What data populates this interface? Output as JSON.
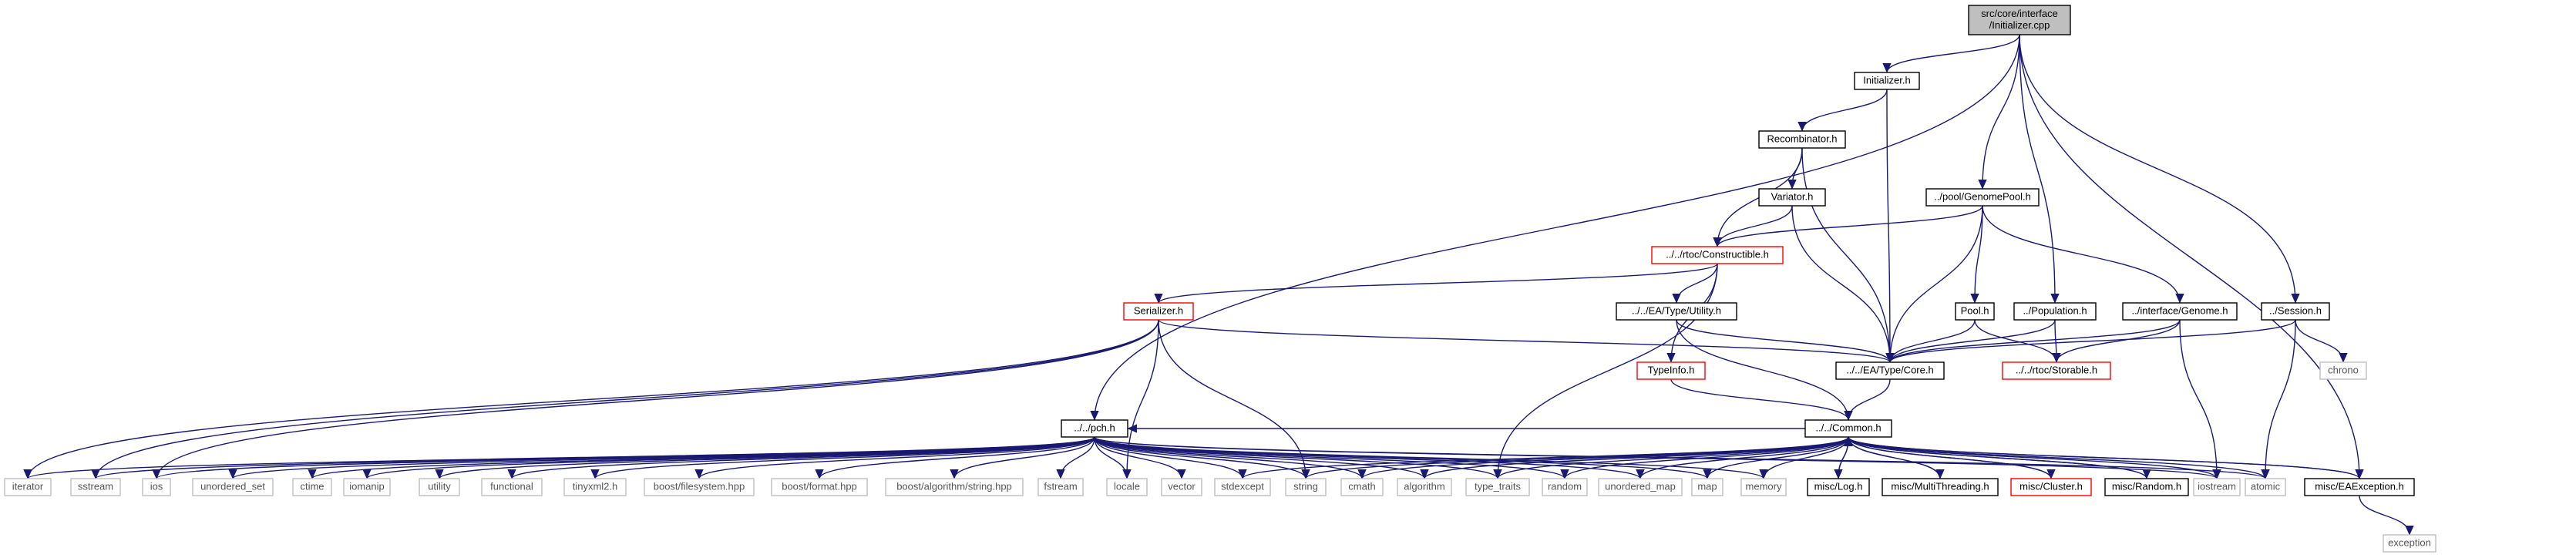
{
  "diagram": {
    "type": "include-dependency-graph",
    "colors": {
      "edge": "#191970",
      "node_border": "#000000",
      "root_fill": "#bfbfbf",
      "truncated_border": "#ff0000",
      "external_border": "#bfbfbf",
      "external_text": "#555555"
    },
    "nodes": [
      {
        "id": "root",
        "label": "src/core/interface\n/Initializer.cpp",
        "kind": "root"
      },
      {
        "id": "initializer_h",
        "label": "Initializer.h",
        "kind": "normal"
      },
      {
        "id": "recombinator_h",
        "label": "Recombinator.h",
        "kind": "normal"
      },
      {
        "id": "variator_h",
        "label": "Variator.h",
        "kind": "normal"
      },
      {
        "id": "genomepool_h",
        "label": "../pool/GenomePool.h",
        "kind": "normal"
      },
      {
        "id": "constructible_h",
        "label": "../../rtoc/Constructible.h",
        "kind": "truncated"
      },
      {
        "id": "serializer_h",
        "label": "Serializer.h",
        "kind": "truncated"
      },
      {
        "id": "utility_h",
        "label": "../../EA/Type/Utility.h",
        "kind": "normal"
      },
      {
        "id": "pool_h",
        "label": "Pool.h",
        "kind": "normal"
      },
      {
        "id": "population_h",
        "label": "../Population.h",
        "kind": "normal"
      },
      {
        "id": "genome_h",
        "label": "../interface/Genome.h",
        "kind": "normal"
      },
      {
        "id": "session_h",
        "label": "../Session.h",
        "kind": "normal"
      },
      {
        "id": "chrono",
        "label": "chrono",
        "kind": "external"
      },
      {
        "id": "typeinfo_h",
        "label": "TypeInfo.h",
        "kind": "truncated"
      },
      {
        "id": "core_h",
        "label": "../../EA/Type/Core.h",
        "kind": "normal"
      },
      {
        "id": "storable_h",
        "label": "../../rtoc/Storable.h",
        "kind": "truncated"
      },
      {
        "id": "pch_h",
        "label": "../../pch.h",
        "kind": "normal"
      },
      {
        "id": "common_h",
        "label": "../../Common.h",
        "kind": "normal"
      },
      {
        "id": "iterator",
        "label": "iterator",
        "kind": "external"
      },
      {
        "id": "sstream",
        "label": "sstream",
        "kind": "external"
      },
      {
        "id": "ios",
        "label": "ios",
        "kind": "external"
      },
      {
        "id": "unordered_set",
        "label": "unordered_set",
        "kind": "external"
      },
      {
        "id": "ctime",
        "label": "ctime",
        "kind": "external"
      },
      {
        "id": "iomanip",
        "label": "iomanip",
        "kind": "external"
      },
      {
        "id": "utility",
        "label": "utility",
        "kind": "external"
      },
      {
        "id": "functional",
        "label": "functional",
        "kind": "external"
      },
      {
        "id": "tinyxml2_h",
        "label": "tinyxml2.h",
        "kind": "external"
      },
      {
        "id": "boost_filesystem",
        "label": "boost/filesystem.hpp",
        "kind": "external"
      },
      {
        "id": "boost_format",
        "label": "boost/format.hpp",
        "kind": "external"
      },
      {
        "id": "boost_algorithm",
        "label": "boost/algorithm/string.hpp",
        "kind": "external"
      },
      {
        "id": "fstream",
        "label": "fstream",
        "kind": "external"
      },
      {
        "id": "locale",
        "label": "locale",
        "kind": "external"
      },
      {
        "id": "vector",
        "label": "vector",
        "kind": "external"
      },
      {
        "id": "stdexcept",
        "label": "stdexcept",
        "kind": "external"
      },
      {
        "id": "string",
        "label": "string",
        "kind": "external"
      },
      {
        "id": "cmath",
        "label": "cmath",
        "kind": "external"
      },
      {
        "id": "algorithm",
        "label": "algorithm",
        "kind": "external"
      },
      {
        "id": "type_traits",
        "label": "type_traits",
        "kind": "external"
      },
      {
        "id": "random",
        "label": "random",
        "kind": "external"
      },
      {
        "id": "unordered_map",
        "label": "unordered_map",
        "kind": "external"
      },
      {
        "id": "map",
        "label": "map",
        "kind": "external"
      },
      {
        "id": "memory",
        "label": "memory",
        "kind": "external"
      },
      {
        "id": "log_h",
        "label": "misc/Log.h",
        "kind": "normal"
      },
      {
        "id": "multithreading_h",
        "label": "misc/MultiThreading.h",
        "kind": "normal"
      },
      {
        "id": "cluster_h",
        "label": "misc/Cluster.h",
        "kind": "truncated"
      },
      {
        "id": "random_h",
        "label": "misc/Random.h",
        "kind": "normal"
      },
      {
        "id": "iostream",
        "label": "iostream",
        "kind": "external"
      },
      {
        "id": "atomic",
        "label": "atomic",
        "kind": "external"
      },
      {
        "id": "eaexception_h",
        "label": "misc/EAException.h",
        "kind": "normal"
      },
      {
        "id": "exception",
        "label": "exception",
        "kind": "external"
      }
    ],
    "edges": [
      [
        "root",
        "initializer_h"
      ],
      [
        "root",
        "genomepool_h"
      ],
      [
        "root",
        "population_h"
      ],
      [
        "root",
        "session_h"
      ],
      [
        "root",
        "pch_h"
      ],
      [
        "root",
        "eaexception_h"
      ],
      [
        "initializer_h",
        "recombinator_h"
      ],
      [
        "initializer_h",
        "core_h"
      ],
      [
        "recombinator_h",
        "variator_h"
      ],
      [
        "recombinator_h",
        "constructible_h"
      ],
      [
        "recombinator_h",
        "core_h"
      ],
      [
        "variator_h",
        "constructible_h"
      ],
      [
        "variator_h",
        "core_h"
      ],
      [
        "genomepool_h",
        "constructible_h"
      ],
      [
        "genomepool_h",
        "pool_h"
      ],
      [
        "genomepool_h",
        "genome_h"
      ],
      [
        "genomepool_h",
        "core_h"
      ],
      [
        "constructible_h",
        "serializer_h"
      ],
      [
        "constructible_h",
        "utility_h"
      ],
      [
        "constructible_h",
        "typeinfo_h"
      ],
      [
        "constructible_h",
        "type_traits"
      ],
      [
        "serializer_h",
        "core_h"
      ],
      [
        "serializer_h",
        "iterator"
      ],
      [
        "serializer_h",
        "sstream"
      ],
      [
        "serializer_h",
        "ios"
      ],
      [
        "serializer_h",
        "locale"
      ],
      [
        "serializer_h",
        "string"
      ],
      [
        "utility_h",
        "core_h"
      ],
      [
        "utility_h",
        "common_h"
      ],
      [
        "pool_h",
        "core_h"
      ],
      [
        "pool_h",
        "storable_h"
      ],
      [
        "population_h",
        "core_h"
      ],
      [
        "population_h",
        "storable_h"
      ],
      [
        "genome_h",
        "core_h"
      ],
      [
        "genome_h",
        "storable_h"
      ],
      [
        "genome_h",
        "iostream"
      ],
      [
        "session_h",
        "core_h"
      ],
      [
        "session_h",
        "chrono"
      ],
      [
        "session_h",
        "atomic"
      ],
      [
        "typeinfo_h",
        "common_h"
      ],
      [
        "core_h",
        "common_h"
      ],
      [
        "pch_h",
        "iterator"
      ],
      [
        "pch_h",
        "sstream"
      ],
      [
        "pch_h",
        "ios"
      ],
      [
        "pch_h",
        "unordered_set"
      ],
      [
        "pch_h",
        "ctime"
      ],
      [
        "pch_h",
        "iomanip"
      ],
      [
        "pch_h",
        "utility"
      ],
      [
        "pch_h",
        "functional"
      ],
      [
        "pch_h",
        "tinyxml2_h"
      ],
      [
        "pch_h",
        "boost_filesystem"
      ],
      [
        "pch_h",
        "boost_format"
      ],
      [
        "pch_h",
        "boost_algorithm"
      ],
      [
        "pch_h",
        "fstream"
      ],
      [
        "pch_h",
        "locale"
      ],
      [
        "pch_h",
        "vector"
      ],
      [
        "pch_h",
        "stdexcept"
      ],
      [
        "pch_h",
        "string"
      ],
      [
        "pch_h",
        "cmath"
      ],
      [
        "pch_h",
        "algorithm"
      ],
      [
        "pch_h",
        "type_traits"
      ],
      [
        "pch_h",
        "random"
      ],
      [
        "pch_h",
        "unordered_map"
      ],
      [
        "pch_h",
        "map"
      ],
      [
        "pch_h",
        "memory"
      ],
      [
        "pch_h",
        "iostream"
      ],
      [
        "pch_h",
        "atomic"
      ],
      [
        "common_h",
        "pch_h"
      ],
      [
        "common_h",
        "stdexcept"
      ],
      [
        "common_h",
        "string"
      ],
      [
        "common_h",
        "cmath"
      ],
      [
        "common_h",
        "algorithm"
      ],
      [
        "common_h",
        "type_traits"
      ],
      [
        "common_h",
        "random"
      ],
      [
        "common_h",
        "unordered_map"
      ],
      [
        "common_h",
        "map"
      ],
      [
        "common_h",
        "memory"
      ],
      [
        "common_h",
        "log_h"
      ],
      [
        "common_h",
        "multithreading_h"
      ],
      [
        "common_h",
        "cluster_h"
      ],
      [
        "common_h",
        "random_h"
      ],
      [
        "common_h",
        "iostream"
      ],
      [
        "common_h",
        "atomic"
      ],
      [
        "common_h",
        "eaexception_h"
      ],
      [
        "log_h",
        "common_h"
      ],
      [
        "multithreading_h",
        "common_h"
      ],
      [
        "cluster_h",
        "common_h"
      ],
      [
        "random_h",
        "common_h"
      ],
      [
        "eaexception_h",
        "common_h"
      ],
      [
        "eaexception_h",
        "exception"
      ]
    ]
  }
}
